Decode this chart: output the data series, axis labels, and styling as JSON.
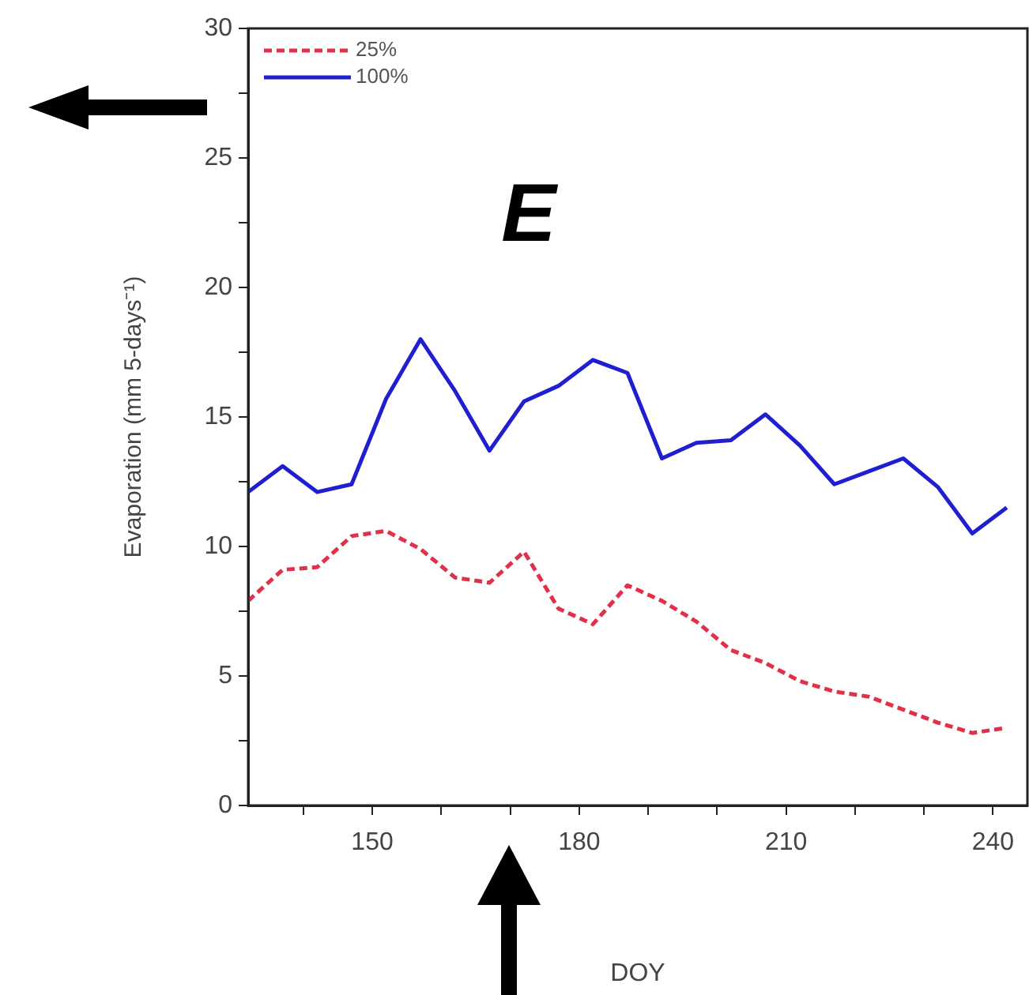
{
  "chart_data": {
    "type": "line",
    "xlabel": "DOY",
    "ylabel": "Evaporation (mm 5-days⁻¹)",
    "annotations": [
      "E"
    ],
    "x": [
      132,
      137,
      142,
      147,
      152,
      157,
      162,
      167,
      172,
      177,
      182,
      187,
      192,
      197,
      202,
      207,
      212,
      217,
      222,
      227,
      232,
      237,
      242
    ],
    "series": [
      {
        "name": "25%",
        "color": "#e0304a",
        "line_style": "dashed",
        "values": [
          7.9,
          9.1,
          9.2,
          10.4,
          10.6,
          9.9,
          8.8,
          8.6,
          9.8,
          7.6,
          7.0,
          8.5,
          7.9,
          7.1,
          6.0,
          5.5,
          4.8,
          4.4,
          4.2,
          3.7,
          3.2,
          2.8,
          3.0
        ]
      },
      {
        "name": "100%",
        "color": "#1f1fd0",
        "line_style": "solid",
        "values": [
          12.1,
          13.1,
          12.1,
          12.4,
          15.7,
          18.0,
          16.0,
          13.7,
          15.6,
          16.2,
          17.2,
          16.7,
          13.4,
          14.0,
          14.1,
          15.1,
          13.9,
          12.4,
          12.9,
          13.4,
          12.3,
          10.5,
          11.5
        ]
      }
    ],
    "xlim": [
      132,
      245
    ],
    "xticks": [
      {
        "value": 140,
        "label": null
      },
      150,
      {
        "value": 160,
        "label": null
      },
      {
        "value": 170,
        "label": null
      },
      180,
      {
        "value": 190,
        "label": null
      },
      {
        "value": 200,
        "label": null
      },
      210,
      {
        "value": 220,
        "label": null
      },
      {
        "value": 230,
        "label": null
      },
      240
    ],
    "ylim": [
      0,
      30
    ],
    "yticks": [
      0,
      {
        "value": 2.5,
        "label": null
      },
      5,
      {
        "value": 7.5,
        "label": null
      },
      10,
      {
        "value": 12.5,
        "label": null
      },
      15,
      {
        "value": 17.5,
        "label": null
      },
      20,
      {
        "value": 22.5,
        "label": null
      },
      25,
      {
        "value": 27.5,
        "label": null
      },
      30
    ],
    "grid": false,
    "legend": "top left",
    "marker": "none"
  }
}
